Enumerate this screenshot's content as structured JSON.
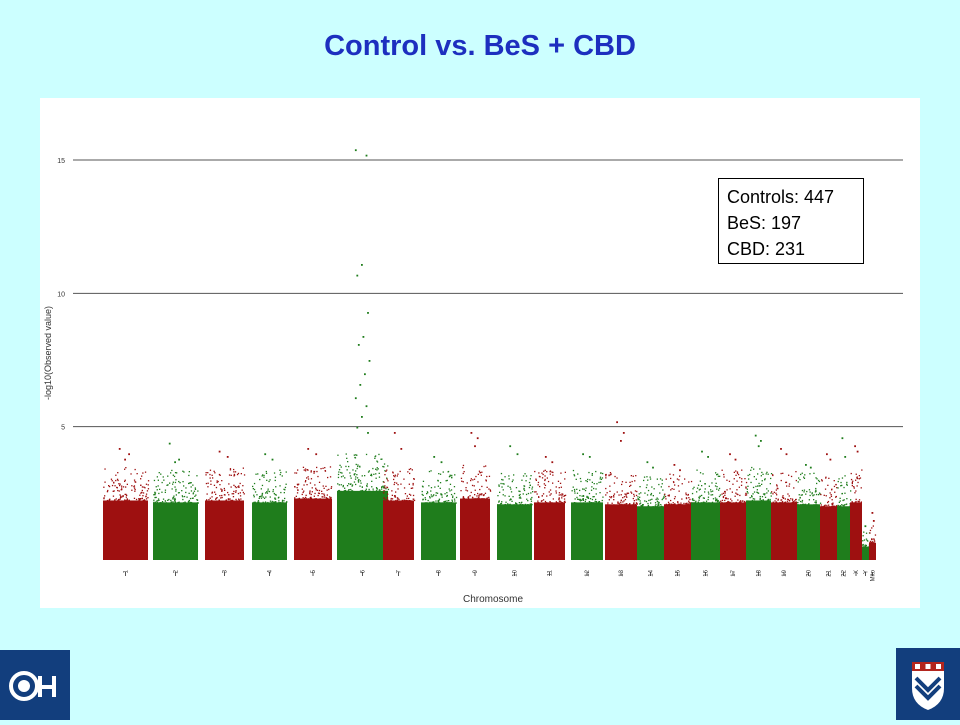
{
  "slide": {
    "title": "Control vs. BeS + CBD"
  },
  "legend": {
    "lines": [
      "Controls: 447",
      "BeS: 197",
      "CBD: 231"
    ]
  },
  "chart_data": {
    "type": "scatter",
    "subtype": "manhattan",
    "xlabel": "Chromosome",
    "ylabel": "-log10(Observed value)",
    "ylim": [
      0,
      16.5
    ],
    "yticks": [
      5,
      10,
      15
    ],
    "grid": "horizontal lines at y ticks",
    "colors": {
      "odd_chromosome": "#9e1010",
      "even_chromosome": "#1f7d1c"
    },
    "chromosomes": [
      {
        "label": "1",
        "bulk": 3.1,
        "peaks": [
          4.2,
          4.0,
          3.8
        ]
      },
      {
        "label": "2",
        "bulk": 3.0,
        "peaks": [
          4.4,
          3.8,
          3.7
        ]
      },
      {
        "label": "3",
        "bulk": 3.1,
        "peaks": [
          4.1,
          3.9
        ]
      },
      {
        "label": "4",
        "bulk": 3.0,
        "peaks": [
          4.0,
          3.8
        ]
      },
      {
        "label": "5",
        "bulk": 3.2,
        "peaks": [
          4.2,
          4.0
        ]
      },
      {
        "label": "6",
        "bulk": 3.6,
        "peaks": [
          15.4,
          15.2,
          11.1,
          10.7,
          9.3,
          8.4,
          8.1,
          7.5,
          7.0,
          6.6,
          6.1,
          5.8,
          5.4,
          5.0,
          4.8
        ]
      },
      {
        "label": "7",
        "bulk": 3.1,
        "peaks": [
          4.8,
          4.2
        ]
      },
      {
        "label": "8",
        "bulk": 3.0,
        "peaks": [
          3.9,
          3.7
        ]
      },
      {
        "label": "9",
        "bulk": 3.2,
        "peaks": [
          4.8,
          4.6,
          4.3
        ]
      },
      {
        "label": "10",
        "bulk": 2.9,
        "peaks": [
          4.3,
          4.0
        ]
      },
      {
        "label": "11",
        "bulk": 3.0,
        "peaks": [
          3.9,
          3.7
        ]
      },
      {
        "label": "12",
        "bulk": 3.0,
        "peaks": [
          4.0,
          3.9
        ]
      },
      {
        "label": "13",
        "bulk": 2.9,
        "peaks": [
          5.2,
          4.8,
          4.5
        ]
      },
      {
        "label": "14",
        "bulk": 2.8,
        "peaks": [
          3.7,
          3.5
        ]
      },
      {
        "label": "15",
        "bulk": 2.9,
        "peaks": [
          3.6,
          3.4
        ]
      },
      {
        "label": "16",
        "bulk": 3.0,
        "peaks": [
          4.1,
          3.9
        ]
      },
      {
        "label": "17",
        "bulk": 3.0,
        "peaks": [
          4.0,
          3.8
        ]
      },
      {
        "label": "18",
        "bulk": 3.1,
        "peaks": [
          4.7,
          4.5,
          4.3
        ]
      },
      {
        "label": "19",
        "bulk": 3.0,
        "peaks": [
          4.2,
          4.0
        ]
      },
      {
        "label": "20",
        "bulk": 2.9,
        "peaks": [
          3.6,
          3.5
        ]
      },
      {
        "label": "21",
        "bulk": 2.8,
        "peaks": [
          4.0,
          3.8
        ]
      },
      {
        "label": "22",
        "bulk": 2.8,
        "peaks": [
          4.6,
          3.9
        ]
      },
      {
        "label": "X",
        "bulk": 3.0,
        "peaks": [
          4.3,
          4.1
        ]
      },
      {
        "label": "Y",
        "bulk": 0.7,
        "peaks": [
          1.3
        ]
      },
      {
        "label": "Mito",
        "bulk": 0.9,
        "peaks": [
          1.8,
          1.5
        ]
      }
    ]
  }
}
